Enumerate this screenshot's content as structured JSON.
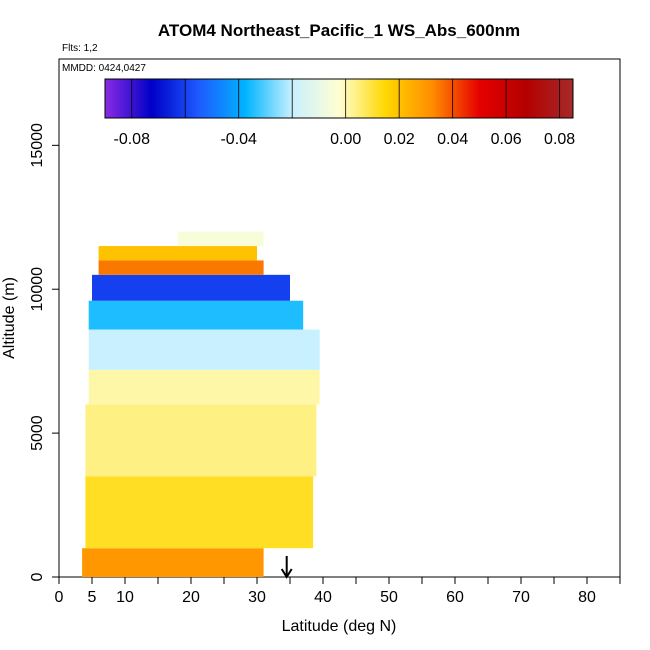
{
  "chart_data": {
    "type": "heatmap",
    "title": "ATOM4 Northeast_Pacific_1 WS_Abs_600nm",
    "subtitle_flights": "Flts: 1,2",
    "subtitle_dates": "MMDD: 0424,0427",
    "xlabel": "Latitude (deg N)",
    "ylabel": "Altitude (m)",
    "xlim": [
      0,
      85
    ],
    "ylim": [
      0,
      18000
    ],
    "x_ticks": [
      0,
      5,
      10,
      20,
      30,
      40,
      50,
      60,
      70,
      80
    ],
    "y_ticks": [
      0,
      5000,
      10000,
      15000
    ],
    "marker_arrow_latitude": 34.5,
    "colorbar": {
      "min": -0.09,
      "max": 0.085,
      "ticks": [
        -0.08,
        -0.04,
        0.0,
        0.02,
        0.04,
        0.06,
        0.08
      ],
      "tick_labels": [
        "-0.08",
        "-0.04",
        "0.00",
        "0.02",
        "0.04",
        "0.06",
        "0.08"
      ],
      "colors": [
        "#8a2be2",
        "#0000c8",
        "#1e5aff",
        "#00b4ff",
        "#c8f0ff",
        "#ffffd2",
        "#ffd700",
        "#ff8c00",
        "#e60000",
        "#b40000",
        "#a52a2a"
      ]
    },
    "bands": [
      {
        "z0": 0,
        "z1": 1000,
        "x0": 3.5,
        "x1": 31,
        "value": 0.03
      },
      {
        "z0": 1000,
        "z1": 3500,
        "x0": 4,
        "x1": 38.5,
        "value": 0.012
      },
      {
        "z0": 3500,
        "z1": 6000,
        "x0": 4,
        "x1": 39,
        "value": 0.004
      },
      {
        "z0": 6000,
        "z1": 7200,
        "x0": 4.5,
        "x1": 39.5,
        "value": 0.001
      },
      {
        "z0": 7200,
        "z1": 8600,
        "x0": 4.5,
        "x1": 39.5,
        "value": -0.02
      },
      {
        "z0": 8600,
        "z1": 9600,
        "x0": 4.5,
        "x1": 37,
        "value": -0.035
      },
      {
        "z0": 9600,
        "z1": 10500,
        "x0": 5,
        "x1": 35,
        "value": -0.06
      },
      {
        "z0": 10500,
        "z1": 11000,
        "x0": 6,
        "x1": 31,
        "value": 0.035
      },
      {
        "z0": 11000,
        "z1": 11500,
        "x0": 6,
        "x1": 30,
        "value": 0.02
      },
      {
        "z0": 11500,
        "z1": 12000,
        "x0": 18,
        "x1": 31,
        "value": -0.005
      }
    ]
  }
}
